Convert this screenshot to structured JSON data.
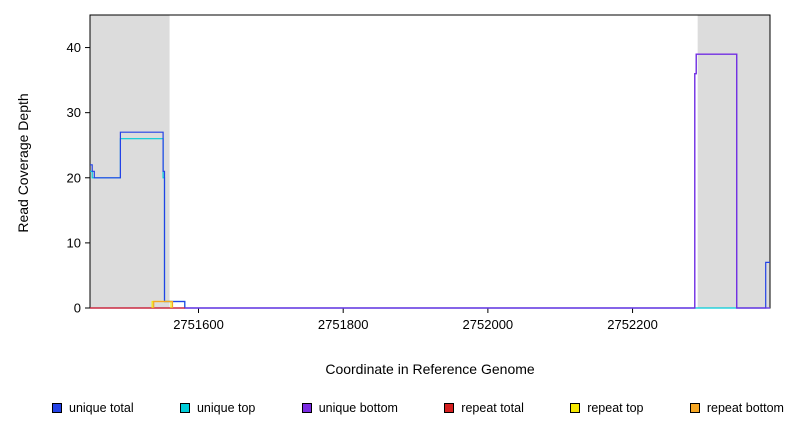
{
  "figure": {
    "background": "#FFFFFF",
    "plot_border_color": "#000000",
    "shaded_region_color": "#DCDCDC"
  },
  "chart_data": {
    "type": "line",
    "title": "",
    "xlabel": "Coordinate in Reference Genome",
    "ylabel": "Read Coverage Depth",
    "xlim": [
      2751450,
      2752390
    ],
    "ylim": [
      0,
      45
    ],
    "xticks": [
      2751600,
      2751800,
      2752000,
      2752200
    ],
    "yticks": [
      0,
      10,
      20,
      30,
      40
    ],
    "grid": false,
    "legend_position": "bottom",
    "shaded_regions": [
      {
        "name": "repeat-region-left",
        "x0": 2751450,
        "x1": 2751560,
        "color": "#DCDCDC"
      },
      {
        "name": "repeat-region-right",
        "x0": 2752290,
        "x1": 2752390,
        "color": "#DCDCDC"
      }
    ],
    "series": [
      {
        "name": "unique top",
        "color": "#00CCD8",
        "points": [
          [
            2751450,
            21
          ],
          [
            2751453,
            21
          ],
          [
            2751453,
            20
          ],
          [
            2751492,
            20
          ],
          [
            2751492,
            26
          ],
          [
            2751551,
            26
          ],
          [
            2751551,
            20
          ],
          [
            2751553,
            20
          ],
          [
            2751553,
            1
          ],
          [
            2751581,
            1
          ],
          [
            2751581,
            0
          ],
          [
            2752390,
            0
          ]
        ]
      },
      {
        "name": "unique total",
        "color": "#2442E6",
        "points": [
          [
            2751450,
            22
          ],
          [
            2751453,
            22
          ],
          [
            2751453,
            21
          ],
          [
            2751456,
            21
          ],
          [
            2751456,
            20
          ],
          [
            2751492,
            20
          ],
          [
            2751492,
            27
          ],
          [
            2751551,
            27
          ],
          [
            2751551,
            21
          ],
          [
            2751553,
            21
          ],
          [
            2751553,
            1
          ],
          [
            2751581,
            1
          ],
          [
            2751581,
            0
          ],
          [
            2752286,
            0
          ],
          [
            2752286,
            36
          ],
          [
            2752288,
            36
          ],
          [
            2752288,
            39
          ],
          [
            2752344,
            39
          ],
          [
            2752344,
            0
          ],
          [
            2752384,
            0
          ],
          [
            2752384,
            7
          ],
          [
            2752390,
            7
          ]
        ]
      },
      {
        "name": "unique bottom",
        "color": "#7A2BE2",
        "points": [
          [
            2751450,
            0
          ],
          [
            2752286,
            0
          ],
          [
            2752286,
            36
          ],
          [
            2752288,
            36
          ],
          [
            2752288,
            39
          ],
          [
            2752344,
            39
          ],
          [
            2752344,
            0
          ],
          [
            2752390,
            0
          ]
        ]
      },
      {
        "name": "repeat total",
        "color": "#D42020",
        "points": [
          [
            2751450,
            0
          ],
          [
            2751581,
            0
          ]
        ]
      },
      {
        "name": "repeat top",
        "color": "#F5E800",
        "points": [
          [
            2751536,
            0
          ],
          [
            2751536,
            1
          ],
          [
            2751562,
            1
          ],
          [
            2751562,
            0
          ]
        ]
      },
      {
        "name": "repeat bottom",
        "color": "#F5A623",
        "points": [
          [
            2751538,
            0
          ],
          [
            2751538,
            1
          ],
          [
            2751564,
            1
          ],
          [
            2751564,
            0
          ]
        ]
      }
    ],
    "legend": [
      {
        "label": "unique total",
        "color": "#2442E6"
      },
      {
        "label": "unique top",
        "color": "#00CCD8"
      },
      {
        "label": "unique bottom",
        "color": "#7A2BE2"
      },
      {
        "label": "repeat total",
        "color": "#D42020"
      },
      {
        "label": "repeat top",
        "color": "#F5E800"
      },
      {
        "label": "repeat bottom",
        "color": "#F5A623"
      }
    ]
  }
}
